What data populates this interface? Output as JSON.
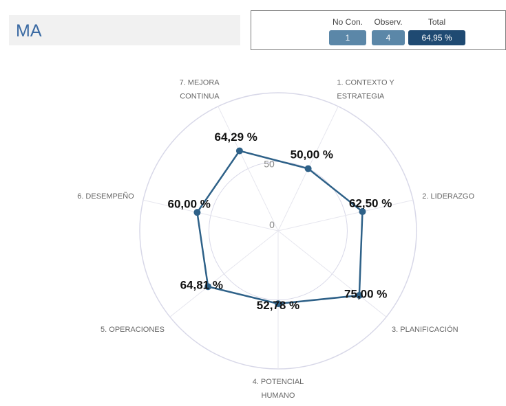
{
  "header": {
    "title": "MA"
  },
  "stats": {
    "no_con": {
      "label": "No Con.",
      "value": "1"
    },
    "observ": {
      "label": "Observ.",
      "value": "4"
    },
    "total": {
      "label": "Total",
      "value": "64,95 %"
    }
  },
  "colors": {
    "accent": "#2e6188",
    "pill_light": "#5b87a8",
    "pill_dark": "#1f4a72",
    "grid": "#d8d8e8",
    "title_text": "#3a6aa3"
  },
  "chart_data": {
    "type": "radar",
    "categories": [
      "1. CONTEXTO Y ESTRATEGIA",
      "2. LIDERAZGO",
      "3. PLANIFICACIÓN",
      "4. POTENCIAL HUMANO",
      "5. OPERACIONES",
      "6. DESEMPEÑO",
      "7. MEJORA CONTINUA"
    ],
    "category_lines": [
      [
        "1. CONTEXTO Y",
        "ESTRATEGIA"
      ],
      [
        "2. LIDERAZGO"
      ],
      [
        "3. PLANIFICACIÓN"
      ],
      [
        "4. POTENCIAL",
        "HUMANO"
      ],
      [
        "5. OPERACIONES"
      ],
      [
        "6. DESEMPEÑO"
      ],
      [
        "7. MEJORA",
        "CONTINUA"
      ]
    ],
    "values": [
      50.0,
      62.5,
      75.0,
      52.78,
      64.81,
      60.0,
      64.29
    ],
    "value_labels": [
      "50,00 %",
      "62,50 %",
      "75,00 %",
      "52,78 %",
      "64,81 %",
      "60,00 %",
      "64,29 %"
    ],
    "rlim": [
      0,
      100
    ],
    "ring_ticks": [
      "0",
      "50"
    ],
    "grid": true,
    "legend": "none"
  }
}
